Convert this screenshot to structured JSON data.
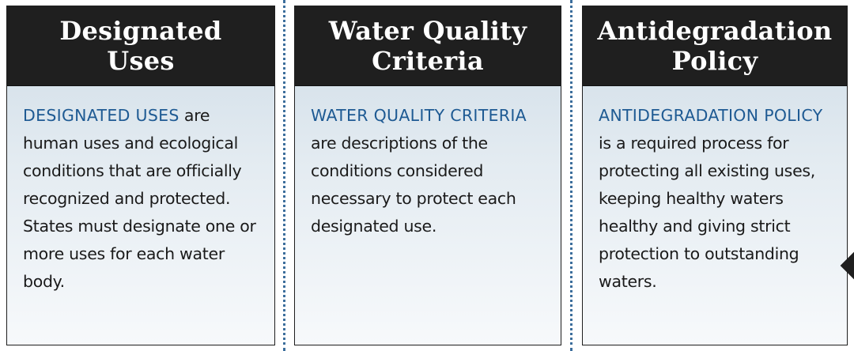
{
  "panels": [
    {
      "title": "Designated\nUses",
      "term": "DESIGNATED USES",
      "text": " are human uses and ecological conditions that are officially recognized and protected. States must designate one or more uses for each water body."
    },
    {
      "title": "Water Quality\nCriteria",
      "term": "WATER QUALITY CRITERIA",
      "text": " are descriptions of the conditions considered necessary to protect each designated use."
    },
    {
      "title": "Antidegradation\nPolicy",
      "term": "ANTIDEGRADATION POLICY",
      "text": " is a required process for protecting all existing uses, keeping healthy waters healthy and giving strict protection to outstanding waters."
    }
  ],
  "colors": {
    "header": "#1f1f1f",
    "term": "#1e5a93",
    "divider": "#3c6e9c"
  },
  "icons": {
    "pointer": "arrow-pointer-icon"
  }
}
